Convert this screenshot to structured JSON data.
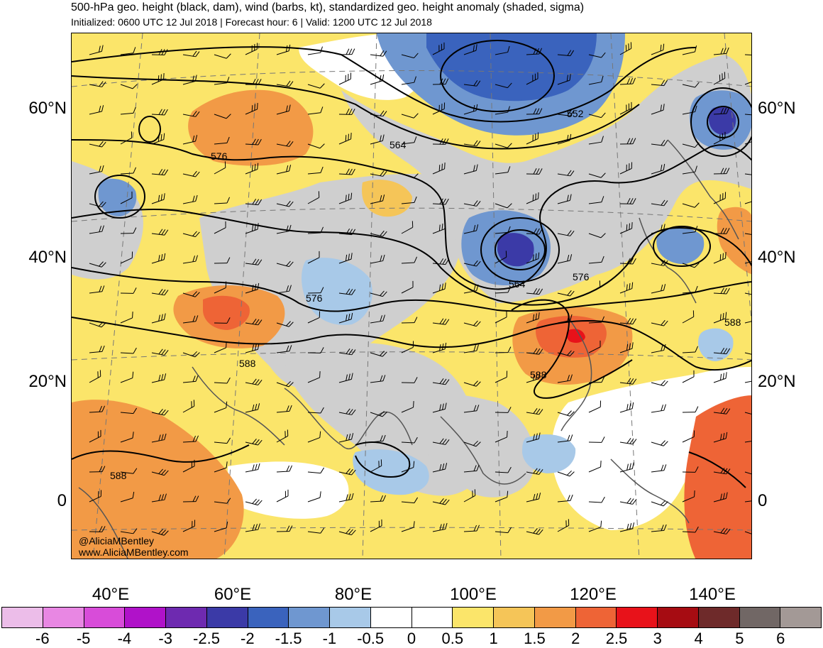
{
  "header": {
    "title": "500-hPa geo. height (black, dam), wind (barbs, kt), standardized geo. height anomaly (shaded, sigma)",
    "subtitle": "Initialized: 0600 UTC 12 Jul 2018 | Forecast hour: 6 | Valid: 1200 UTC 12 Jul 2018"
  },
  "credit": {
    "line1": "@AliciaMBentley",
    "line2": "www.AliciaMBentley.com"
  },
  "axes": {
    "lat_labels": [
      "60°N",
      "40°N",
      "20°N",
      "0"
    ],
    "lon_labels": [
      "40°E",
      "60°E",
      "80°E",
      "100°E",
      "120°E",
      "140°E"
    ]
  },
  "contour_labels": [
    "552",
    "564",
    "576",
    "576",
    "576",
    "564",
    "576",
    "588",
    "588",
    "588",
    "588"
  ],
  "colorbar": {
    "labels": [
      "-6",
      "-5",
      "-4",
      "-3",
      "-2.5",
      "-2",
      "-1.5",
      "-1",
      "-0.5",
      "0",
      "0.5",
      "1",
      "1.5",
      "2",
      "2.5",
      "3",
      "4",
      "5",
      "6"
    ],
    "colors": [
      "#ecbde9",
      "#e887e3",
      "#d84cd9",
      "#b012c9",
      "#6e2ab0",
      "#3b3aa7",
      "#3a63bd",
      "#6f97d0",
      "#a8c9e8",
      "#ffffff",
      "#ffffff",
      "#fbe56a",
      "#f5c558",
      "#f29a46",
      "#ee6436",
      "#e8121a",
      "#a60c12",
      "#6e2a2a",
      "#716765",
      "#a39996"
    ]
  }
}
